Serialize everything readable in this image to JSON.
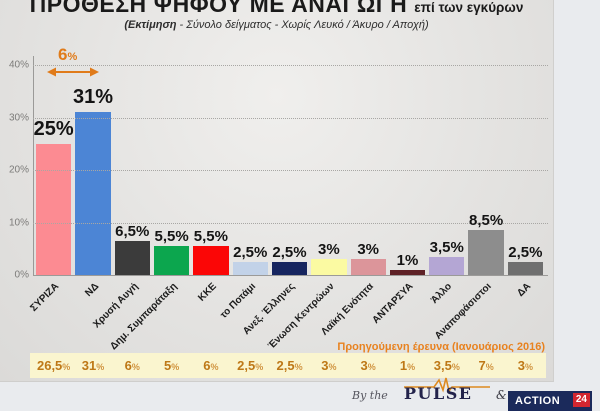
{
  "header": {
    "title": "ΠΡΟΘΕΣΗ ΨΗΦΟΥ ΜΕ ΑΝΑΓΩΓΗ",
    "title_suffix": "επί των εγκύρων",
    "subtitle_lead": "(Εκτίμηση",
    "subtitle_rest": " - Σύνολο δείγματος - Χωρίς Λευκό / Άκυρο / Αποχή)"
  },
  "chart_data": {
    "type": "bar",
    "title": "ΠΡΟΘΕΣΗ ΨΗΦΟΥ ΜΕ ΑΝΑΓΩΓΗ επί των εγκύρων",
    "subtitle": "(Εκτίμηση - Σύνολο δείγματος - Χωρίς Λευκό / Άκυρο / Αποχή)",
    "categories": [
      "ΣΥΡΙΖΑ",
      "ΝΔ",
      "Χρυσή Αυγή",
      "Δημ. Συμπαράταξη",
      "ΚΚΕ",
      "το Ποτάμι",
      "Ανεξ. Έλληνες",
      "Ένωση Κεντρώων",
      "Λαϊκή Ενότητα",
      "ΑΝΤΑΡΣΥΑ",
      "Άλλο",
      "Αναποφάσιστοι",
      "ΔΑ"
    ],
    "values": [
      25,
      31,
      6.5,
      5.5,
      5.5,
      2.5,
      2.5,
      3,
      3,
      1,
      3.5,
      8.5,
      2.5
    ],
    "value_labels": [
      "25%",
      "31%",
      "6,5%",
      "5,5%",
      "5,5%",
      "2,5%",
      "2,5%",
      "3%",
      "3%",
      "1%",
      "3,5%",
      "8,5%",
      "2,5%"
    ],
    "bar_colors": [
      "#FC8B92",
      "#4C85D5",
      "#3B3B3B",
      "#0CA64E",
      "#FB0606",
      "#C2D2E8",
      "#16255F",
      "#FBFAA2",
      "#DC959A",
      "#5E2126",
      "#B4A6D4",
      "#8D8D8D",
      "#6F6F6F"
    ],
    "ylim": [
      0,
      40
    ],
    "grid": "horizontal dotted",
    "legend": "none",
    "yticks": [
      {
        "label": "40%",
        "value": 40
      },
      {
        "label": "30%",
        "value": 30
      },
      {
        "label": "20%",
        "value": 20
      },
      {
        "label": "10%",
        "value": 10
      },
      {
        "label": "0%",
        "value": 0
      }
    ],
    "annotation": {
      "value": "6",
      "percent": "%"
    },
    "previous_survey": {
      "label": "Προηγούμενη έρευνα (Ιανουάριος 2016)",
      "values": [
        "26,5",
        "31",
        "6",
        "5",
        "6",
        "2,5",
        "2,5",
        "3",
        "3",
        "1",
        "3,5",
        "7",
        "3"
      ],
      "percent": "%"
    }
  },
  "footer": {
    "credit": "By the",
    "pulse": "PULSE",
    "amp": "&",
    "action": "ACTION",
    "action_badge": "24",
    "accent_orange": "#E8821F",
    "navy": "#1B2A5B",
    "badge_red": "#D22630"
  }
}
